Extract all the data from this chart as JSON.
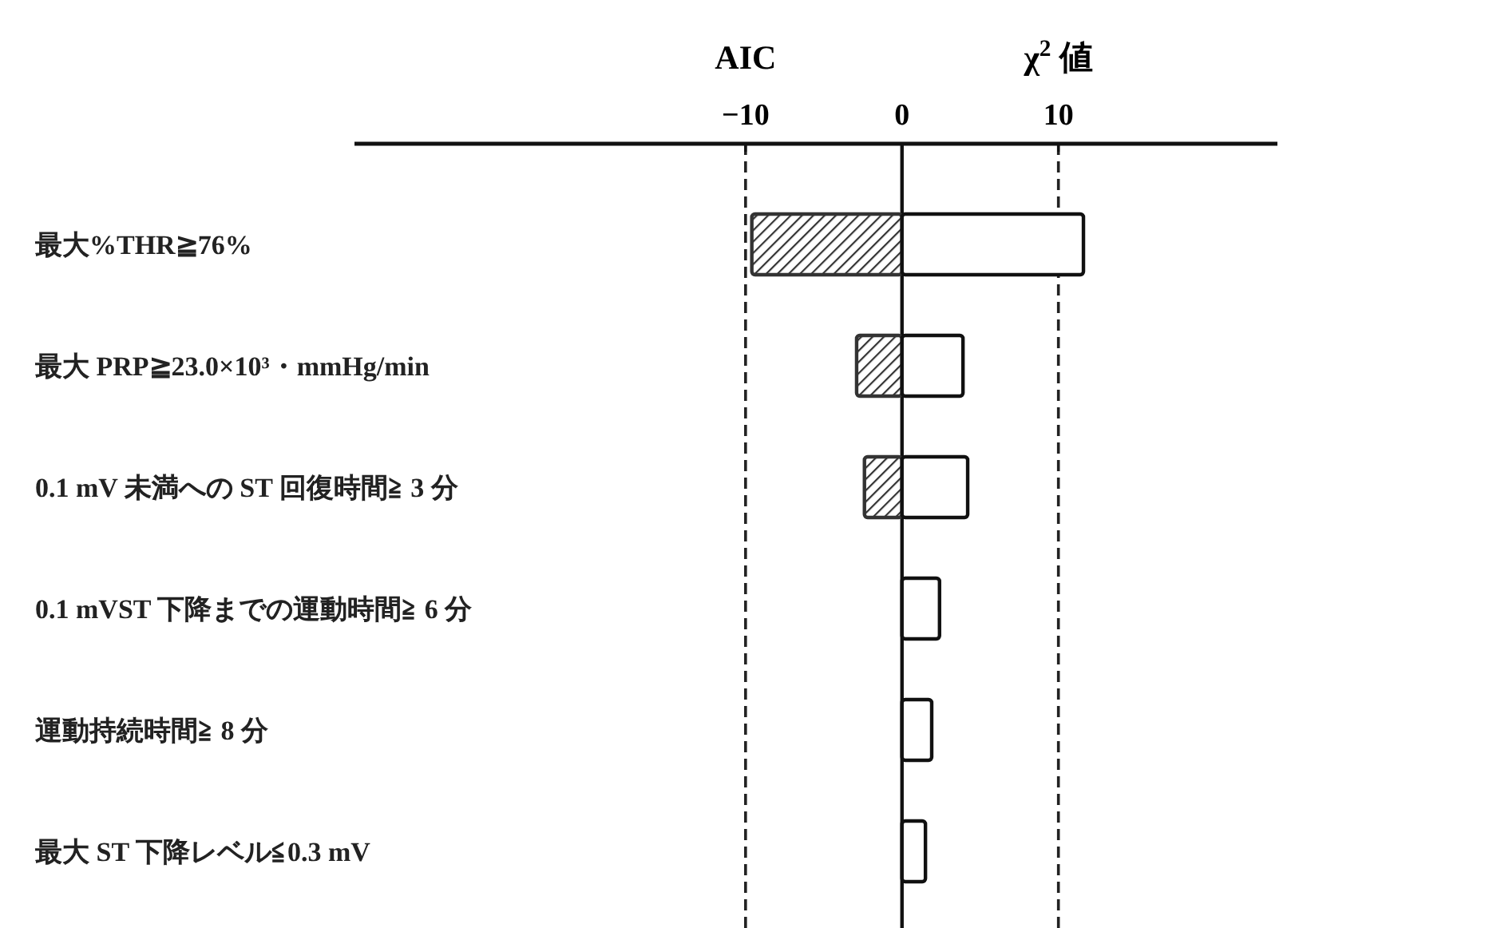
{
  "chart_data": {
    "type": "bar",
    "orientation": "horizontal",
    "stacked": true,
    "annotations": [
      "AIC",
      "χ$^{2}$ 値"
    ],
    "categories": [
      "最大%THR≧76%",
      "最大 PRP≧23.0×10³・mmHg/min",
      "0.1 mV 未満への ST 回復時間≧ 3 分",
      "0.1 mVST 下降までの運動時間≧ 6 分",
      "運動持続時間≧ 8 分",
      "最大 ST 下降レベル≦0.3 mV"
    ],
    "series": [
      {
        "color": "#333333",
        "values": [
          -9.6,
          -2.9,
          -2.4,
          null,
          null,
          null
        ]
      },
      {
        "color": "#ffffff",
        "values": [
          11.6,
          3.9,
          4.2,
          2.4,
          1.9,
          1.5
        ]
      }
    ],
    "xlim": [
      -35,
      24
    ],
    "xticks": [
      {
        "value": -10,
        "label": "−10"
      },
      0,
      10
    ],
    "ref_lines": [
      {
        "axis": "x",
        "value": -10,
        "line_style": "dashed",
        "color": "#222222"
      },
      {
        "axis": "x",
        "value": 0,
        "line_style": "solid",
        "color": "#111111"
      },
      {
        "axis": "x",
        "value": 10,
        "line_style": "dashed",
        "color": "#222222"
      }
    ]
  }
}
